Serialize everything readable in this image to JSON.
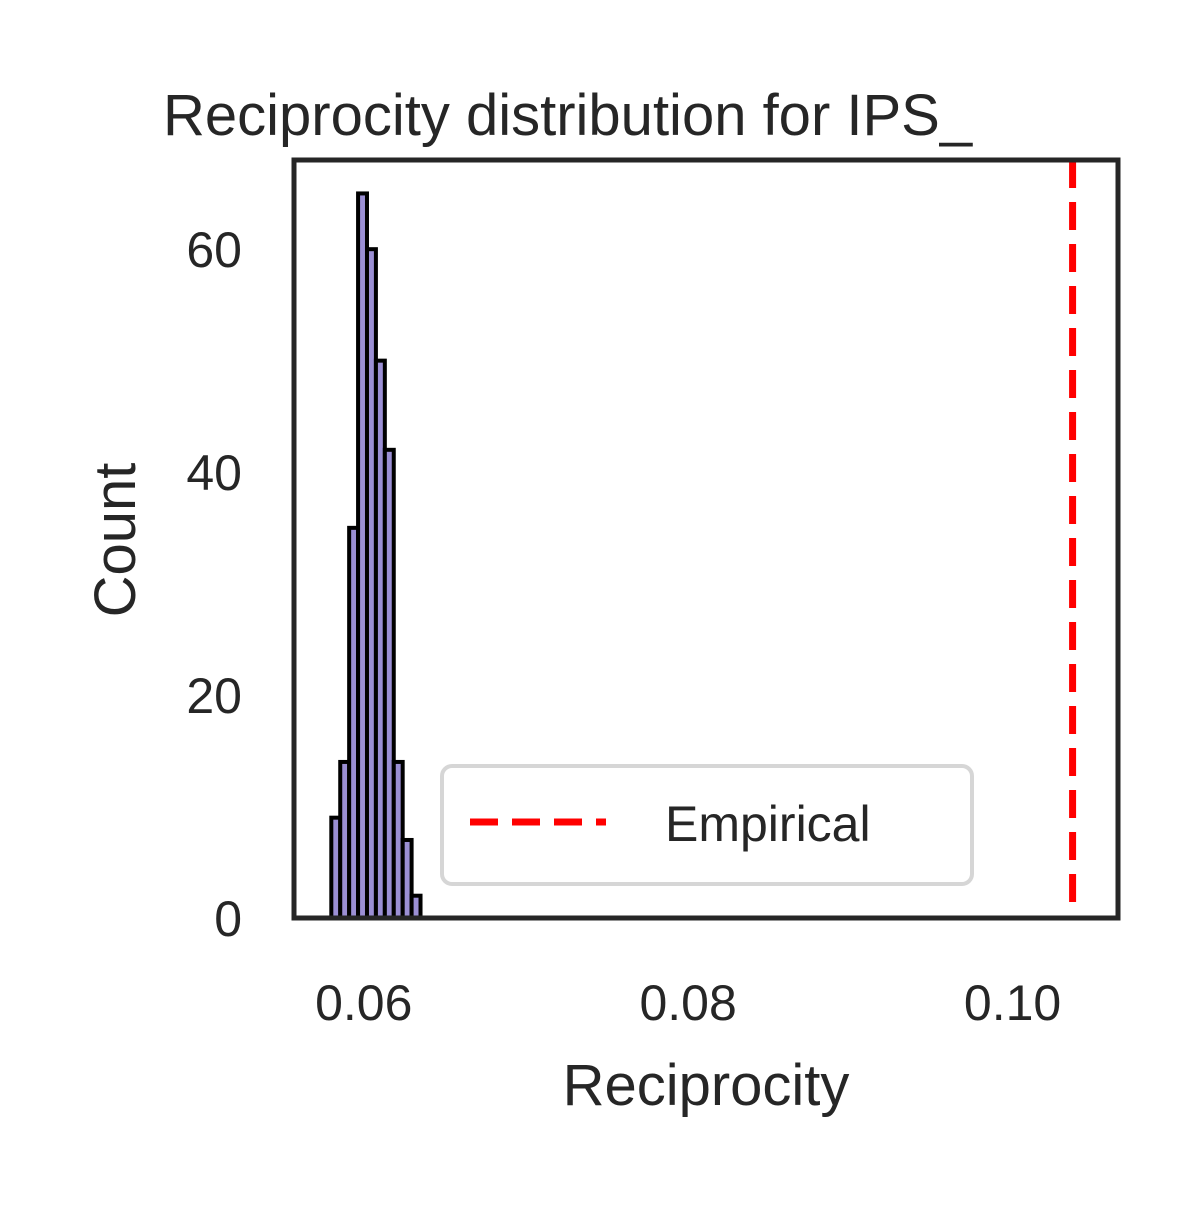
{
  "chart_data": {
    "type": "bar",
    "title": "Reciprocity distribution for IPS_",
    "xlabel": "Reciprocity",
    "ylabel": "Count",
    "xlim": [
      0.0557,
      0.1065
    ],
    "ylim": [
      0,
      68
    ],
    "x_ticks": [
      0.06,
      0.08,
      0.1
    ],
    "x_tick_labels": [
      "0.06",
      "0.08",
      "0.10"
    ],
    "y_ticks": [
      0,
      20,
      40,
      60
    ],
    "y_tick_labels": [
      "0",
      "20",
      "40",
      "60"
    ],
    "bin_width": 0.00055,
    "bin_starts": [
      0.058,
      0.05855,
      0.0591,
      0.05965,
      0.0602,
      0.06075,
      0.0613,
      0.06185,
      0.0624,
      0.06295,
      0.0635
    ],
    "counts": [
      9,
      14,
      35,
      65,
      60,
      50,
      42,
      14,
      7,
      2,
      0
    ],
    "bar_color": "#9b8fd4",
    "edge_color": "#000000",
    "grid": false,
    "reference_line": {
      "x": 0.1037,
      "label": "Empirical",
      "color": "#ff0000",
      "style": "dashed"
    },
    "legend": {
      "position": "lower-center",
      "entries": [
        "Empirical"
      ]
    }
  }
}
